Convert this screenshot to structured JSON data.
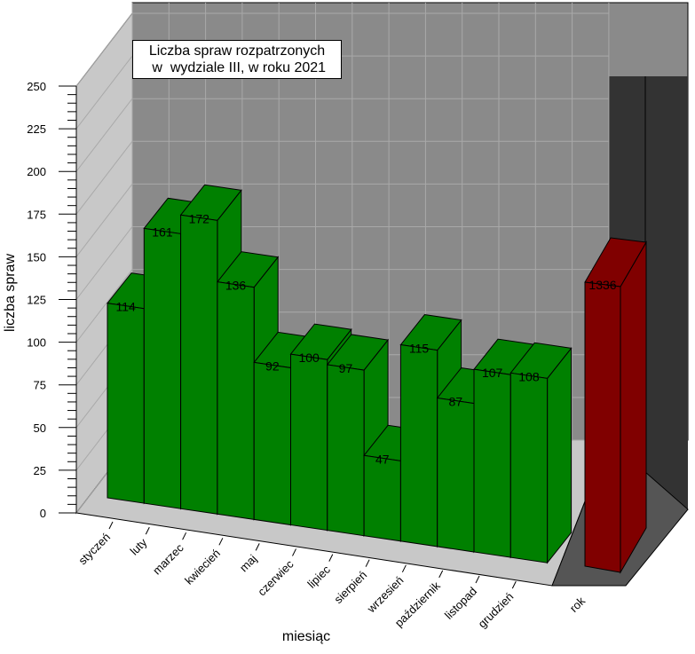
{
  "chart_data": {
    "type": "bar",
    "title": [
      "Liczba spraw rozpatrzonych",
      " w  wydziale III, w roku 2021"
    ],
    "xlabel": "miesiąc",
    "ylabel": "liczba spraw",
    "ylim": [
      0,
      250
    ],
    "yticks": [
      0,
      25,
      50,
      75,
      100,
      125,
      150,
      175,
      200,
      225,
      250
    ],
    "categories": [
      "styczeń",
      "luty",
      "marzec",
      "kwiecień",
      "maj",
      "czerwiec",
      "lipiec",
      "sierpień",
      "wrzesień",
      "październik",
      "listopad",
      "grudzień"
    ],
    "values": [
      114,
      161,
      172,
      136,
      92,
      100,
      97,
      47,
      115,
      87,
      107,
      108
    ],
    "series_color": "#008000",
    "total": {
      "category": "rok",
      "value": 1336,
      "label": "1336",
      "color": "#800000"
    },
    "grid": true,
    "view": "3d"
  }
}
